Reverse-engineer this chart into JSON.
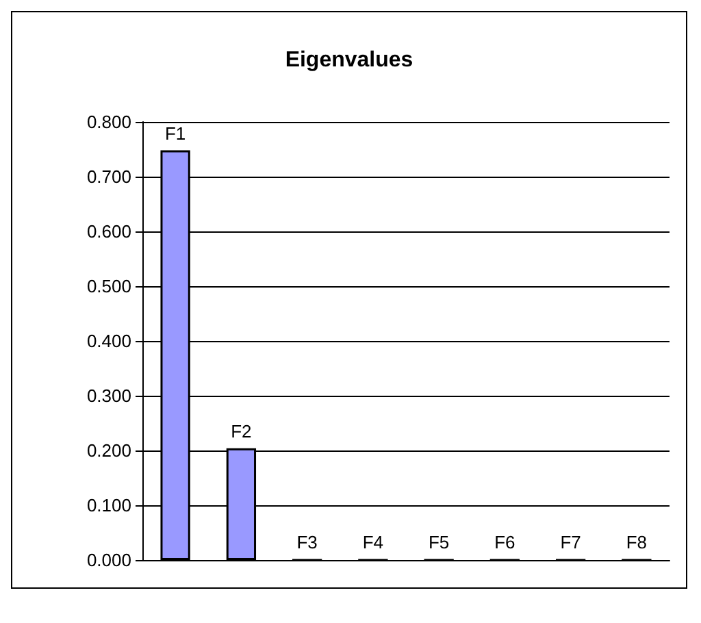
{
  "chart_data": {
    "type": "bar",
    "title": "Eigenvalues",
    "categories": [
      "F1",
      "F2",
      "F3",
      "F4",
      "F5",
      "F6",
      "F7",
      "F8"
    ],
    "values": [
      0.748,
      0.204,
      0,
      0,
      0,
      0,
      0,
      0
    ],
    "color": "#9999ff",
    "ylim": [
      0,
      0.8
    ],
    "yticks": [
      {
        "value": 0,
        "label": "0.000"
      },
      {
        "value": 0.1,
        "label": "0.100"
      },
      {
        "value": 0.2,
        "label": "0.200"
      },
      {
        "value": 0.3,
        "label": "0.300"
      },
      {
        "value": 0.4,
        "label": "0.400"
      },
      {
        "value": 0.5,
        "label": "0.500"
      },
      {
        "value": 0.6,
        "label": "0.600"
      },
      {
        "value": 0.7,
        "label": "0.700"
      },
      {
        "value": 0.8,
        "label": "0.800"
      }
    ],
    "grid": "y",
    "tick_labels": "y"
  }
}
